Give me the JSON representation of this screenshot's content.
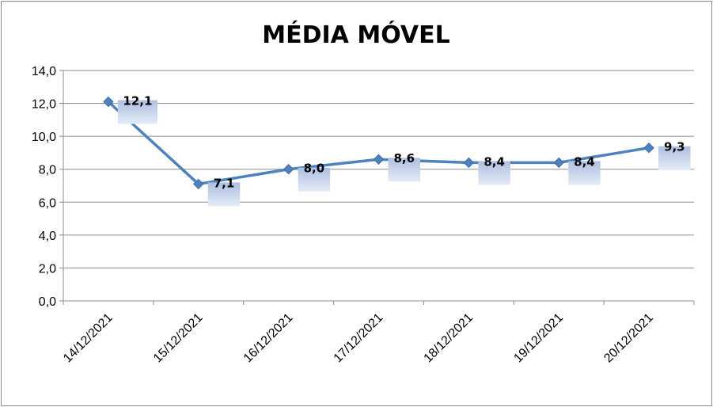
{
  "chart_data": {
    "type": "line",
    "title": "MÉDIA MÓVEL",
    "categories": [
      "14/12/2021",
      "15/12/2021",
      "16/12/2021",
      "17/12/2021",
      "18/12/2021",
      "19/12/2021",
      "20/12/2021"
    ],
    "series": [
      {
        "values": [
          12.1,
          7.1,
          8.0,
          8.6,
          8.4,
          8.4,
          9.3
        ],
        "data_labels": [
          "12,1",
          "7,1",
          "8,0",
          "8,6",
          "8,4",
          "8,4",
          "9,3"
        ],
        "color": "#4f81bd",
        "marker": "diamond"
      }
    ],
    "ylim": [
      0,
      14
    ],
    "yticks": [
      0,
      2,
      4,
      6,
      8,
      10,
      12,
      14
    ],
    "ytick_labels": [
      "0,0",
      "2,0",
      "4,0",
      "6,0",
      "8,0",
      "10,0",
      "12,0",
      "14,0"
    ],
    "grid": true,
    "label_box_color": "#c6d3ea"
  }
}
